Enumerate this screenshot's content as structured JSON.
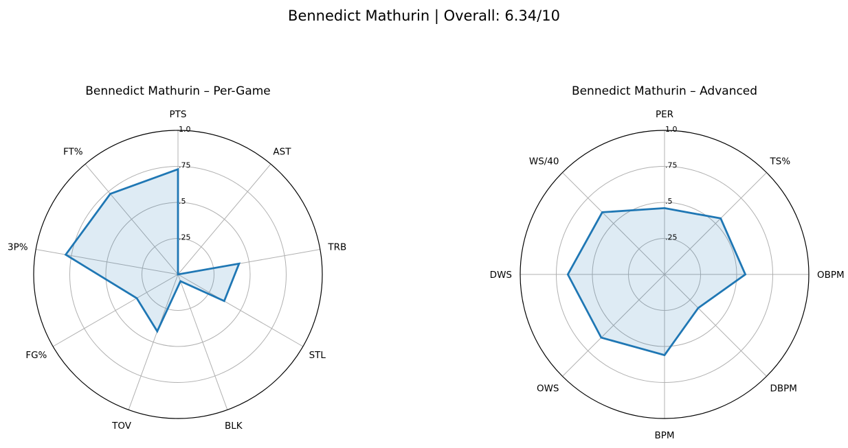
{
  "figure": {
    "title": "Bennedict Mathurin | Overall: 6.34/10"
  },
  "chart_data": [
    {
      "type": "radar",
      "title": "Bennedict Mathurin – Per-Game",
      "categories": [
        "PTS",
        "AST",
        "TRB",
        "STL",
        "BLK",
        "TOV",
        "FG%",
        "3P%",
        "FT%"
      ],
      "values": [
        0.73,
        0.0,
        0.43,
        0.37,
        0.05,
        0.42,
        0.33,
        0.79,
        0.73
      ],
      "rlim": [
        0,
        1.0
      ],
      "rticks": [
        ".25",
        ".5",
        ".75",
        "1.0"
      ],
      "grid": true,
      "color": "#1f77b4",
      "fill_color": "#1f77b4"
    },
    {
      "type": "radar",
      "title": "Bennedict Mathurin – Advanced",
      "categories": [
        "PER",
        "TS%",
        "OBPM",
        "DBPM",
        "BPM",
        "OWS",
        "DWS",
        "WS/40"
      ],
      "values": [
        0.46,
        0.55,
        0.56,
        0.33,
        0.56,
        0.62,
        0.67,
        0.61
      ],
      "rlim": [
        0,
        1.0
      ],
      "rticks": [
        ".25",
        ".5",
        ".75",
        "1.0"
      ],
      "grid": true,
      "color": "#1f77b4",
      "fill_color": "#1f77b4"
    }
  ]
}
